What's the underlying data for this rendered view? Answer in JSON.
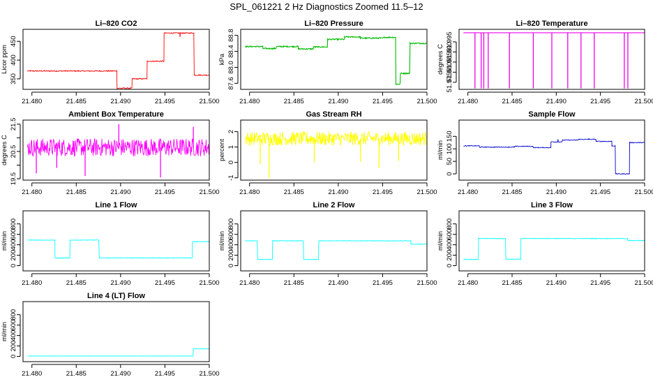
{
  "page_title": "SPL_061221  2 Hz Diagnostics Zoomed 11.5–12",
  "chart_data": [
    {
      "type": "line",
      "title": "Li–820 CO2",
      "xlabel": "",
      "ylabel": "Licor ppm",
      "xlim": [
        21.479,
        21.5
      ],
      "ylim": [
        322,
        482
      ],
      "x_ticks": [
        "21.480",
        "21.485",
        "21.490",
        "21.495",
        "21.500"
      ],
      "y_ticks": [
        350,
        400,
        450
      ],
      "color": "#ff0000",
      "noise": 1.5,
      "series": [
        {
          "segments": [
            [
              21.4795,
              21.4896,
              371
            ],
            [
              21.4896,
              21.4913,
              325
            ],
            [
              21.4913,
              21.493,
              350
            ],
            [
              21.493,
              21.4949,
              397
            ],
            [
              21.4949,
              21.4983,
              472
            ],
            [
              21.4983,
              21.5,
              360
            ]
          ]
        }
      ],
      "spikes": [
        {
          "x": 21.4967,
          "value": 462
        }
      ]
    },
    {
      "type": "line",
      "title": "Li–820 Pressure",
      "xlabel": "",
      "ylabel": "kPa",
      "xlim": [
        21.479,
        21.5
      ],
      "ylim": [
        87.45,
        88.95
      ],
      "x_ticks": [
        "21.480",
        "21.485",
        "21.490",
        "21.495",
        "21.500"
      ],
      "y_ticks": [
        87.6,
        88.0,
        88.4,
        88.8
      ],
      "y_tick_labels": [
        "87.6",
        "88.0",
        "88.4",
        "88.8"
      ],
      "color": "#00bb00",
      "noise": 0.015,
      "series": [
        {
          "segments": [
            [
              21.4795,
              21.4815,
              88.52
            ],
            [
              21.4815,
              21.483,
              88.47
            ],
            [
              21.483,
              21.4855,
              88.52
            ],
            [
              21.4855,
              21.4872,
              88.46
            ],
            [
              21.4872,
              21.4888,
              88.51
            ],
            [
              21.4888,
              21.4907,
              88.7
            ],
            [
              21.4907,
              21.4925,
              88.76
            ],
            [
              21.4925,
              21.4951,
              88.73
            ],
            [
              21.4951,
              21.4965,
              88.75
            ],
            [
              21.4965,
              21.497,
              87.58
            ],
            [
              21.497,
              21.4981,
              87.85
            ],
            [
              21.4981,
              21.5,
              88.6
            ]
          ]
        }
      ],
      "spikes": []
    },
    {
      "type": "line",
      "title": "Li–820 Temperature",
      "xlabel": "",
      "ylabel": "degrees C",
      "xlim": [
        21.479,
        21.5
      ],
      "ylim": [
        51.9715,
        52.0012
      ],
      "x_ticks": [
        "21.480",
        "21.485",
        "21.490",
        "21.495",
        "21.500"
      ],
      "y_ticks": [
        51.975,
        51.98,
        51.985,
        51.99,
        51.995
      ],
      "y_tick_labels": [
        "51.975",
        "51.980",
        "51.985",
        "51.990",
        "51.995"
      ],
      "color": "#ee00ee",
      "noise": 0,
      "series": [
        {
          "segments": [
            [
              21.4795,
              21.5,
              51.9995
            ]
          ]
        }
      ],
      "spikes": [
        {
          "x": 21.4808,
          "value": 51.972
        },
        {
          "x": 21.4815,
          "value": 51.972
        },
        {
          "x": 21.4818,
          "value": 51.972
        },
        {
          "x": 21.4823,
          "value": 51.972
        },
        {
          "x": 21.4847,
          "value": 51.972
        },
        {
          "x": 21.4874,
          "value": 51.972
        },
        {
          "x": 21.4895,
          "value": 51.972
        },
        {
          "x": 21.4913,
          "value": 51.972
        },
        {
          "x": 21.4928,
          "value": 51.972
        },
        {
          "x": 21.4943,
          "value": 51.972
        },
        {
          "x": 21.4977,
          "value": 51.972
        },
        {
          "x": 21.4981,
          "value": 51.972
        }
      ]
    },
    {
      "type": "line",
      "title": "Ambient Box Temperature",
      "xlabel": "",
      "ylabel": "degrees C",
      "xlim": [
        21.479,
        21.5
      ],
      "ylim": [
        19.45,
        21.65
      ],
      "x_ticks": [
        "21.480",
        "21.485",
        "21.490",
        "21.495",
        "21.500"
      ],
      "y_ticks": [
        19.5,
        20.0,
        20.5,
        21.0,
        21.5
      ],
      "y_tick_labels": [
        "19.5",
        "",
        "20.5",
        "",
        "21.5"
      ],
      "color": "#ff00ff",
      "noise": 0.33,
      "series": [
        {
          "segments": [
            [
              21.4795,
              21.5,
              20.65
            ]
          ]
        }
      ],
      "spikes": [
        {
          "x": 21.4805,
          "value": 19.7
        },
        {
          "x": 21.4828,
          "value": 19.9
        },
        {
          "x": 21.486,
          "value": 19.6
        },
        {
          "x": 21.4898,
          "value": 21.5
        },
        {
          "x": 21.4945,
          "value": 19.55
        },
        {
          "x": 21.4982,
          "value": 21.4
        }
      ]
    },
    {
      "type": "line",
      "title": "Gas Stream RH",
      "xlabel": "",
      "ylabel": "percent",
      "xlim": [
        21.479,
        21.5
      ],
      "ylim": [
        -1.15,
        2.75
      ],
      "x_ticks": [
        "21.480",
        "21.485",
        "21.490",
        "21.495",
        "21.500"
      ],
      "y_ticks": [
        -1,
        0,
        1,
        2
      ],
      "color": "#ffff00",
      "noise": 0.45,
      "series": [
        {
          "segments": [
            [
              21.4795,
              21.5,
              1.55
            ]
          ]
        }
      ],
      "spikes": [
        {
          "x": 21.4822,
          "value": -1.0
        },
        {
          "x": 21.4812,
          "value": -0.1
        },
        {
          "x": 21.4873,
          "value": 0.0
        },
        {
          "x": 21.4925,
          "value": 0.05
        },
        {
          "x": 21.4946,
          "value": -0.35
        },
        {
          "x": 21.4968,
          "value": 0.1
        }
      ]
    },
    {
      "type": "line",
      "title": "Sample Flow",
      "xlabel": "",
      "ylabel": "ml/min",
      "xlim": [
        21.479,
        21.5
      ],
      "ylim": [
        -25,
        215
      ],
      "x_ticks": [
        "21.480",
        "21.485",
        "21.490",
        "21.495",
        "21.500"
      ],
      "y_ticks": [
        0,
        50,
        100,
        150
      ],
      "color": "#0000cc",
      "noise": 1.5,
      "series": [
        {
          "segments": [
            [
              21.4795,
              21.4813,
              112
            ],
            [
              21.4813,
              21.4853,
              107
            ],
            [
              21.4853,
              21.4874,
              110
            ],
            [
              21.4874,
              21.4894,
              105
            ],
            [
              21.4894,
              21.4907,
              128
            ],
            [
              21.4907,
              21.4925,
              135
            ],
            [
              21.4925,
              21.4945,
              138
            ],
            [
              21.4945,
              21.4963,
              130
            ],
            [
              21.4963,
              21.4967,
              112
            ],
            [
              21.4967,
              21.4983,
              0
            ],
            [
              21.4983,
              21.5,
              125
            ]
          ]
        }
      ],
      "spikes": [
        {
          "x": 21.4902,
          "value": 138
        },
        {
          "x": 21.4937,
          "value": 142
        }
      ]
    },
    {
      "type": "line",
      "title": "Line 1 Flow",
      "xlabel": "",
      "ylabel": "ml/min",
      "xlim": [
        21.479,
        21.5
      ],
      "ylim": [
        -100,
        1050
      ],
      "x_ticks": [
        "21.480",
        "21.485",
        "21.490",
        "21.495",
        "21.500"
      ],
      "y_ticks": [
        0,
        200,
        400,
        600,
        800
      ],
      "color": "#00ffff",
      "noise": 5,
      "series": [
        {
          "segments": [
            [
              21.4795,
              21.4826,
              490
            ],
            [
              21.4826,
              21.4843,
              145
            ],
            [
              21.4843,
              21.4876,
              490
            ],
            [
              21.4876,
              21.4981,
              148
            ],
            [
              21.4981,
              21.5,
              460
            ]
          ]
        }
      ],
      "spikes": []
    },
    {
      "type": "line",
      "title": "Line 2 Flow",
      "xlabel": "",
      "ylabel": "ml/min",
      "xlim": [
        21.479,
        21.5
      ],
      "ylim": [
        -100,
        1050
      ],
      "x_ticks": [
        "21.480",
        "21.485",
        "21.490",
        "21.495",
        "21.500"
      ],
      "y_ticks": [
        0,
        200,
        400,
        600,
        800
      ],
      "color": "#00ffff",
      "noise": 5,
      "series": [
        {
          "segments": [
            [
              21.4795,
              21.4809,
              475
            ],
            [
              21.4809,
              21.4826,
              120
            ],
            [
              21.4826,
              21.4861,
              475
            ],
            [
              21.4861,
              21.4878,
              120
            ],
            [
              21.4878,
              21.4982,
              475
            ],
            [
              21.4982,
              21.5,
              410
            ]
          ]
        }
      ],
      "spikes": []
    },
    {
      "type": "line",
      "title": "Line 3 Flow",
      "xlabel": "",
      "ylabel": "ml/min",
      "xlim": [
        21.479,
        21.5
      ],
      "ylim": [
        -100,
        1050
      ],
      "x_ticks": [
        "21.480",
        "21.485",
        "21.490",
        "21.495",
        "21.500"
      ],
      "y_ticks": [
        0,
        200,
        400,
        600,
        800
      ],
      "color": "#00ffff",
      "noise": 6,
      "series": [
        {
          "segments": [
            [
              21.4795,
              21.4812,
              120
            ],
            [
              21.4812,
              21.4843,
              520
            ],
            [
              21.4843,
              21.486,
              125
            ],
            [
              21.486,
              21.4981,
              520
            ],
            [
              21.4981,
              21.5,
              480
            ]
          ]
        }
      ],
      "spikes": []
    },
    {
      "type": "line",
      "title": "Line 4 (LT) Flow",
      "xlabel": "",
      "ylabel": "ml/min",
      "xlim": [
        21.479,
        21.5
      ],
      "ylim": [
        -100,
        1050
      ],
      "x_ticks": [
        "21.480",
        "21.485",
        "21.490",
        "21.495",
        "21.500"
      ],
      "y_ticks": [
        0,
        200,
        400,
        600,
        800
      ],
      "color": "#00ffff",
      "noise": 2,
      "series": [
        {
          "segments": [
            [
              21.4795,
              21.4982,
              8
            ],
            [
              21.4982,
              21.5,
              145
            ]
          ]
        }
      ],
      "spikes": []
    }
  ]
}
